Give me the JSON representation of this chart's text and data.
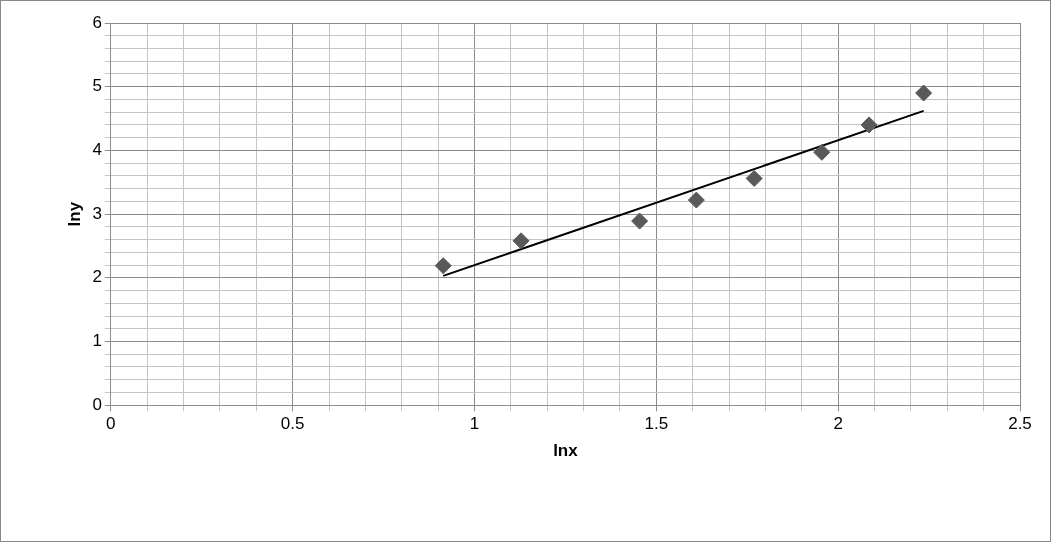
{
  "chart_data": {
    "type": "scatter",
    "xlabel": "lnx",
    "ylabel": "lny",
    "series": [
      {
        "type": "scatter",
        "color": "#595959",
        "marker": "diamond",
        "x": [
          0.914,
          1.128,
          1.454,
          1.61,
          1.769,
          1.955,
          2.085,
          2.235
        ],
        "values": [
          2.19,
          2.58,
          2.89,
          3.22,
          3.56,
          3.97,
          4.4,
          4.9
        ]
      },
      {
        "type": "line",
        "color": "#000000",
        "marker": "none",
        "line_style": "solid",
        "x": [
          0.914,
          2.235
        ],
        "values": [
          2.03,
          4.62
        ]
      }
    ],
    "xlim": [
      0,
      2.5
    ],
    "xticks": [
      0,
      {
        "value": 0.1,
        "label": null
      },
      {
        "value": 0.2,
        "label": null
      },
      {
        "value": 0.3,
        "label": null
      },
      {
        "value": 0.4,
        "label": null
      },
      0.5,
      {
        "value": 0.6,
        "label": null
      },
      {
        "value": 0.7,
        "label": null
      },
      {
        "value": 0.8,
        "label": null
      },
      {
        "value": 0.9,
        "label": null
      },
      1,
      {
        "value": 1.1,
        "label": null
      },
      {
        "value": 1.2,
        "label": null
      },
      {
        "value": 1.3,
        "label": null
      },
      {
        "value": 1.4,
        "label": null
      },
      1.5,
      {
        "value": 1.6,
        "label": null
      },
      {
        "value": 1.7,
        "label": null
      },
      {
        "value": 1.8,
        "label": null
      },
      {
        "value": 1.9,
        "label": null
      },
      2,
      {
        "value": 2.1,
        "label": null
      },
      {
        "value": 2.2,
        "label": null
      },
      {
        "value": 2.3,
        "label": null
      },
      {
        "value": 2.4,
        "label": null
      },
      2.5
    ],
    "ylim": [
      0,
      6
    ],
    "yticks": [
      0,
      {
        "value": 0.2,
        "label": null
      },
      {
        "value": 0.4,
        "label": null
      },
      {
        "value": 0.6,
        "label": null
      },
      {
        "value": 0.8,
        "label": null
      },
      1,
      {
        "value": 1.2,
        "label": null
      },
      {
        "value": 1.4,
        "label": null
      },
      {
        "value": 1.6,
        "label": null
      },
      {
        "value": 1.8,
        "label": null
      },
      2,
      {
        "value": 2.2,
        "label": null
      },
      {
        "value": 2.4,
        "label": null
      },
      {
        "value": 2.6,
        "label": null
      },
      {
        "value": 2.8,
        "label": null
      },
      3,
      {
        "value": 3.2,
        "label": null
      },
      {
        "value": 3.4,
        "label": null
      },
      {
        "value": 3.6,
        "label": null
      },
      {
        "value": 3.8,
        "label": null
      },
      4,
      {
        "value": 4.2,
        "label": null
      },
      {
        "value": 4.4,
        "label": null
      },
      {
        "value": 4.6,
        "label": null
      },
      {
        "value": 4.8,
        "label": null
      },
      5,
      {
        "value": 5.2,
        "label": null
      },
      {
        "value": 5.4,
        "label": null
      },
      {
        "value": 5.6,
        "label": null
      },
      {
        "value": 5.8,
        "label": null
      },
      6
    ],
    "grid": true,
    "legend": false
  }
}
